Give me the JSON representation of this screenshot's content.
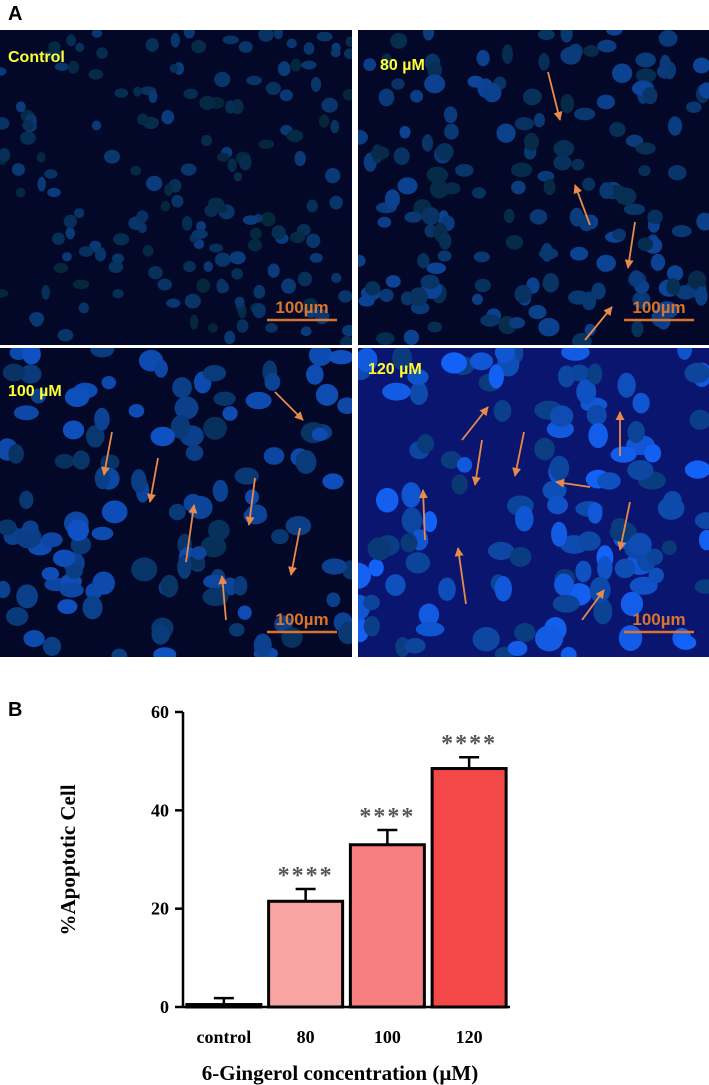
{
  "panels": {
    "label": "A",
    "images": [
      {
        "label": "Control",
        "scale_bar": "100µm"
      },
      {
        "label": "80 µM",
        "scale_bar": "100µm"
      },
      {
        "label": "100 µM",
        "scale_bar": "100µm"
      },
      {
        "label": "120 µM",
        "scale_bar": "100µm"
      }
    ]
  },
  "chart_data": {
    "type": "bar",
    "panel_label": "B",
    "x_label": "6-Gingerol concentration (µM)",
    "y_label": "%Apoptotic Cell",
    "categories": [
      "control",
      "80",
      "100",
      "120"
    ],
    "values": [
      0.5,
      21.5,
      33,
      48.5
    ],
    "errors": [
      1.3,
      2.5,
      3,
      2.3
    ],
    "colors": [
      "#ffffff",
      "#f9a3a3",
      "#f77f7f",
      "#f44848"
    ],
    "significance": [
      null,
      "****",
      "****",
      "****"
    ],
    "ylim": [
      0,
      60
    ],
    "yticks": [
      0,
      20,
      40,
      60
    ]
  }
}
